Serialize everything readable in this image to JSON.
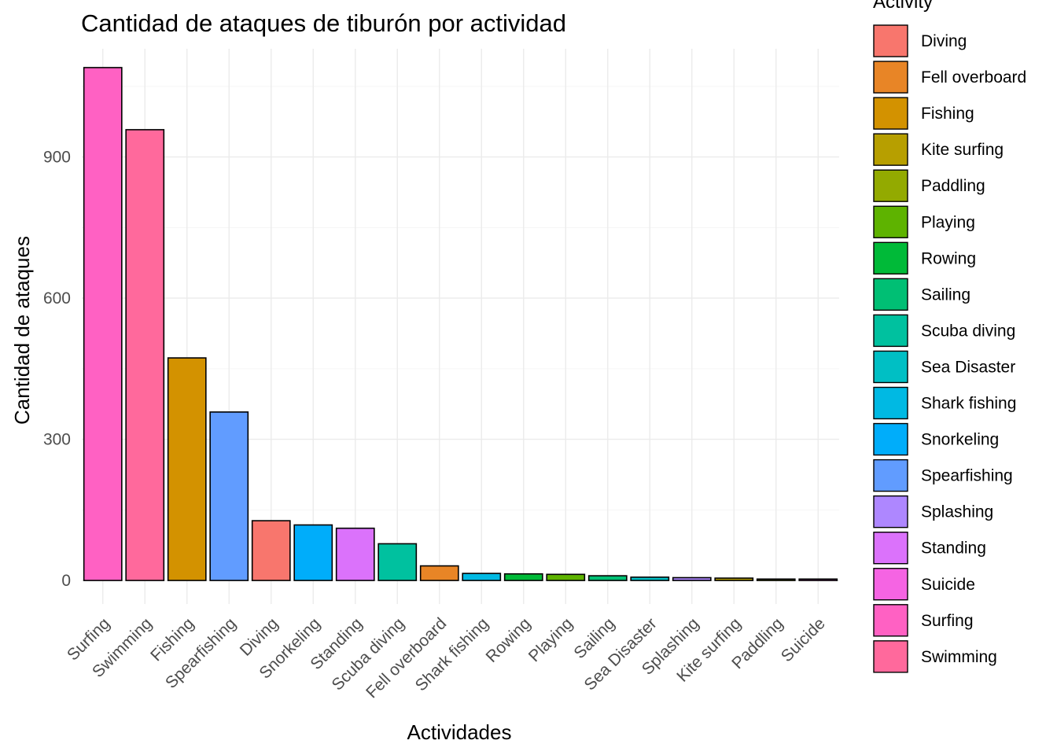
{
  "chart_data": {
    "type": "bar",
    "title": "Cantidad de ataques de tiburón por actividad",
    "xlabel": "Actividades",
    "ylabel": "Cantidad de ataques",
    "ylim": [
      -50,
      1130
    ],
    "yticks": [
      0,
      300,
      600,
      900
    ],
    "grid": true,
    "legend_position": "right",
    "legend_title": "Activity",
    "categories": [
      "Surfing",
      "Swimming",
      "Fishing",
      "Spearfishing",
      "Diving",
      "Snorkeling",
      "Standing",
      "Scuba diving",
      "Fell overboard",
      "Shark fishing",
      "Rowing",
      "Playing",
      "Sailing",
      "Sea Disaster",
      "Splashing",
      "Kite surfing",
      "Paddling",
      "Suicide"
    ],
    "values": [
      1090,
      958,
      473,
      358,
      127,
      118,
      111,
      78,
      31,
      15,
      14,
      13,
      10,
      7,
      6,
      5,
      3,
      3
    ],
    "colors": {
      "Diving": "#F8766D",
      "Fell overboard": "#E88526",
      "Fishing": "#D39200",
      "Kite surfing": "#B79F00",
      "Paddling": "#93AA00",
      "Playing": "#5EB300",
      "Rowing": "#00BA38",
      "Sailing": "#00BF74",
      "Scuba diving": "#00C19F",
      "Sea Disaster": "#00BFC4",
      "Shark fishing": "#00B9E3",
      "Snorkeling": "#00ADFA",
      "Spearfishing": "#619CFF",
      "Splashing": "#AE87FF",
      "Standing": "#DB72FB",
      "Suicide": "#F564E3",
      "Surfing": "#FF61C3",
      "Swimming": "#FF699C"
    },
    "legend": [
      "Diving",
      "Fell overboard",
      "Fishing",
      "Kite surfing",
      "Paddling",
      "Playing",
      "Rowing",
      "Sailing",
      "Scuba diving",
      "Sea Disaster",
      "Shark fishing",
      "Snorkeling",
      "Spearfishing",
      "Splashing",
      "Standing",
      "Suicide",
      "Surfing",
      "Swimming"
    ]
  }
}
